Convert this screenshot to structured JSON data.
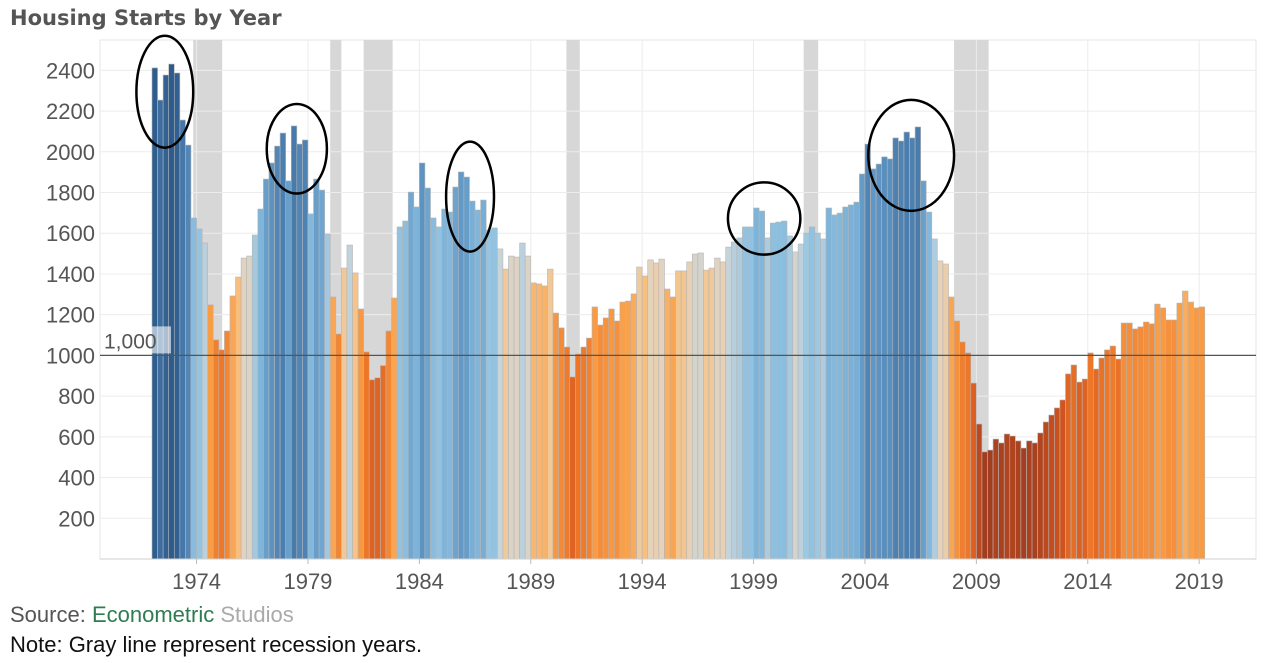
{
  "chart_data": {
    "type": "bar",
    "title": "Housing Starts by Year",
    "xlabel": "",
    "ylabel": "",
    "ylim": [
      0,
      2500
    ],
    "yticks": [
      200,
      400,
      600,
      800,
      1000,
      1200,
      1400,
      1600,
      1800,
      2000,
      2200,
      2400
    ],
    "xticks": [
      1974,
      1979,
      1984,
      1989,
      1994,
      1999,
      2004,
      2009,
      2014,
      2019
    ],
    "xlim": [
      1969.8,
      2021.7
    ],
    "grid": true,
    "frequency": "quarterly",
    "years": [
      1972,
      1973,
      1974,
      1975,
      1976,
      1977,
      1978,
      1979,
      1980,
      1981,
      1982,
      1983,
      1984,
      1985,
      1986,
      1987,
      1988,
      1989,
      1990,
      1991,
      1992,
      1993,
      1994,
      1995,
      1996,
      1997,
      1998,
      1999,
      2000,
      2001,
      2002,
      2003,
      2004,
      2005,
      2006,
      2007,
      2008,
      2009,
      2010,
      2011,
      2012,
      2013,
      2014,
      2015,
      2016,
      2017,
      2018,
      2019
    ],
    "quarterly_values": [
      [
        2412,
        2254,
        2377,
        2431
      ],
      [
        2387,
        2156,
        2033,
        1675
      ],
      [
        1621,
        1552,
        1248,
        1076
      ],
      [
        1027,
        1120,
        1292,
        1385
      ],
      [
        1478,
        1488,
        1591,
        1719
      ],
      [
        1866,
        1945,
        2028,
        2092
      ],
      [
        1857,
        2127,
        2038,
        2058
      ],
      [
        1695,
        1866,
        1812,
        1596
      ],
      [
        1287,
        1105,
        1429,
        1542
      ],
      [
        1405,
        1228,
        1017,
        880
      ],
      [
        890,
        950,
        1120,
        1282
      ],
      [
        1631,
        1660,
        1802,
        1729
      ],
      [
        1945,
        1822,
        1675,
        1631
      ],
      [
        1719,
        1704,
        1827,
        1901
      ],
      [
        1876,
        1758,
        1714,
        1763
      ],
      [
        1616,
        1626,
        1523,
        1424
      ],
      [
        1488,
        1483,
        1552,
        1488
      ],
      [
        1356,
        1351,
        1341,
        1424
      ],
      [
        1208,
        1135,
        1041,
        894
      ],
      [
        1007,
        1041,
        1085,
        1238
      ],
      [
        1149,
        1184,
        1228,
        1169
      ],
      [
        1262,
        1267,
        1302,
        1434
      ],
      [
        1390,
        1469,
        1454,
        1473
      ],
      [
        1326,
        1287,
        1415,
        1415
      ],
      [
        1459,
        1498,
        1503,
        1419
      ],
      [
        1429,
        1478,
        1459,
        1532
      ],
      [
        1557,
        1577,
        1631,
        1631
      ],
      [
        1724,
        1709,
        1577,
        1650
      ],
      [
        1655,
        1660,
        1587,
        1508
      ],
      [
        1547,
        1601,
        1631,
        1601
      ],
      [
        1572,
        1724,
        1690,
        1699
      ],
      [
        1729,
        1739,
        1753,
        1891
      ],
      [
        2038,
        1916,
        1940,
        1975
      ],
      [
        1965,
        2068,
        2053,
        2097
      ],
      [
        2068,
        2122,
        1857,
        1704
      ],
      [
        1572,
        1464,
        1449,
        1287
      ],
      [
        1169,
        1066,
        1012,
        864
      ],
      [
        663,
        526,
        535,
        589
      ],
      [
        570,
        614,
        604,
        580
      ],
      [
        545,
        580,
        570,
        619
      ],
      [
        673,
        707,
        742,
        781
      ],
      [
        909,
        953,
        869,
        884
      ],
      [
        1012,
        933,
        987,
        1027
      ],
      [
        1046,
        982,
        1159,
        1159
      ],
      [
        1130,
        1140,
        1164,
        1155
      ],
      [
        1252,
        1233,
        1174,
        1174
      ],
      [
        1257,
        1316,
        1262,
        1233
      ],
      [
        1238
      ]
    ],
    "reference_line": {
      "value": 1000,
      "label": "1,000",
      "color": "#555555"
    },
    "recessions": [
      [
        1973.85,
        1975.15
      ],
      [
        1980.0,
        1980.5
      ],
      [
        1981.5,
        1982.8
      ],
      [
        1990.6,
        1991.2
      ],
      [
        2001.25,
        2001.9
      ],
      [
        2008.0,
        2009.55
      ]
    ],
    "recession_color": "#d7d7d7",
    "annotations_circled": [
      {
        "x": [
          1971.3,
          1973.85
        ],
        "y": [
          2020,
          2570
        ]
      },
      {
        "x": [
          1977.15,
          1979.85
        ],
        "y": [
          1795,
          2235
        ]
      },
      {
        "x": [
          1985.2,
          1987.35
        ],
        "y": [
          1510,
          2050
        ]
      },
      {
        "x": [
          1997.85,
          2001.1
        ],
        "y": [
          1495,
          1850
        ]
      },
      {
        "x": [
          2004.15,
          2008.0
        ],
        "y": [
          1710,
          2255
        ]
      }
    ],
    "color_scale": [
      [
        500,
        "#9c3a1f"
      ],
      [
        800,
        "#d4561f"
      ],
      [
        1000,
        "#ec7427"
      ],
      [
        1250,
        "#f99d45"
      ],
      [
        1400,
        "#f8c283"
      ],
      [
        1470,
        "#e4d3bd"
      ],
      [
        1530,
        "#c7d4da"
      ],
      [
        1620,
        "#93c4e2"
      ],
      [
        1800,
        "#70a8d2"
      ],
      [
        2050,
        "#4f83b4"
      ],
      [
        2450,
        "#2b5a8a"
      ]
    ]
  },
  "footer": {
    "source_prefix": "Source: ",
    "source_brand_1": "Econometric",
    "source_brand_2": " Studios",
    "brand_color_1": "#2e7d4f",
    "brand_color_2": "#aaaaaa",
    "note": "Note: Gray line represent recession years."
  }
}
